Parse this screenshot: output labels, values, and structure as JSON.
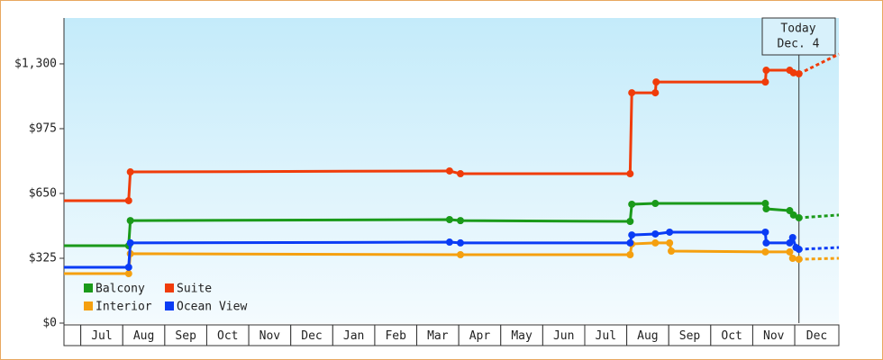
{
  "chart_data": {
    "type": "line",
    "series": [
      {
        "name": "Balcony",
        "color": "#1a9a1a",
        "x": [
          -0.4,
          1.14,
          1.18,
          8.78,
          9.04,
          13.08,
          13.12,
          13.68,
          16.3,
          16.32,
          16.88,
          16.97,
          17.1
        ],
        "values": [
          388,
          388,
          514,
          519,
          514,
          510,
          596,
          600,
          600,
          573,
          564,
          542,
          528
        ],
        "projection": {
          "x": [
            17.1,
            18.05
          ],
          "values": [
            528,
            542
          ]
        }
      },
      {
        "name": "Suite",
        "color": "#f03c0a",
        "x": [
          -0.4,
          1.14,
          1.18,
          8.78,
          9.04,
          13.08,
          13.12,
          13.68,
          13.7,
          16.3,
          16.32,
          16.88,
          16.97,
          17.1
        ],
        "values": [
          614,
          614,
          758,
          763,
          749,
          749,
          1155,
          1155,
          1209,
          1209,
          1268,
          1268,
          1255,
          1250
        ],
        "projection": {
          "x": [
            17.1,
            18.05
          ],
          "values": [
            1250,
            1349
          ]
        }
      },
      {
        "name": "Interior",
        "color": "#f5a00f",
        "x": [
          -0.4,
          1.14,
          1.18,
          9.04,
          13.08,
          13.12,
          13.68,
          14.02,
          14.06,
          16.3,
          16.88,
          16.95,
          17.1
        ],
        "values": [
          248,
          248,
          348,
          343,
          343,
          397,
          402,
          402,
          361,
          357,
          357,
          325,
          320
        ],
        "projection": {
          "x": [
            17.1,
            18.05
          ],
          "values": [
            320,
            325
          ]
        }
      },
      {
        "name": "Ocean View",
        "color": "#0a3cf5",
        "x": [
          -0.4,
          1.14,
          1.18,
          8.78,
          9.04,
          13.08,
          13.12,
          13.68,
          14.02,
          16.3,
          16.32,
          16.88,
          16.95,
          17.03,
          17.1
        ],
        "values": [
          280,
          280,
          402,
          406,
          402,
          402,
          442,
          447,
          456,
          456,
          402,
          402,
          429,
          379,
          370
        ],
        "projection": {
          "x": [
            17.1,
            18.05
          ],
          "values": [
            370,
            379
          ]
        }
      }
    ],
    "xlim": [
      -0.4,
      18.05
    ],
    "xticks": [
      {
        "value": 0,
        "label": "Jul"
      },
      {
        "value": 1,
        "label": "Aug"
      },
      {
        "value": 2,
        "label": "Sep"
      },
      {
        "value": 3,
        "label": "Oct"
      },
      {
        "value": 4,
        "label": "Nov"
      },
      {
        "value": 5,
        "label": "Dec"
      },
      {
        "value": 6,
        "label": "Jan"
      },
      {
        "value": 7,
        "label": "Feb"
      },
      {
        "value": 8,
        "label": "Mar"
      },
      {
        "value": 9,
        "label": "Apr"
      },
      {
        "value": 10,
        "label": "May"
      },
      {
        "value": 11,
        "label": "Jun"
      },
      {
        "value": 12,
        "label": "Jul"
      },
      {
        "value": 13,
        "label": "Aug"
      },
      {
        "value": 14,
        "label": "Sep"
      },
      {
        "value": 15,
        "label": "Oct"
      },
      {
        "value": 16,
        "label": "Nov"
      },
      {
        "value": 17,
        "label": "Dec"
      }
    ],
    "ylim": [
      0,
      1530
    ],
    "yticks": [
      {
        "value": 0,
        "label": "$0"
      },
      {
        "value": 325,
        "label": "$325"
      },
      {
        "value": 650,
        "label": "$650"
      },
      {
        "value": 975,
        "label": "$975"
      },
      {
        "value": 1300,
        "label": "$1,300"
      }
    ],
    "today": {
      "x": 17.1,
      "label": [
        "Today",
        "Dec. 4"
      ]
    },
    "legend": "lower left"
  }
}
